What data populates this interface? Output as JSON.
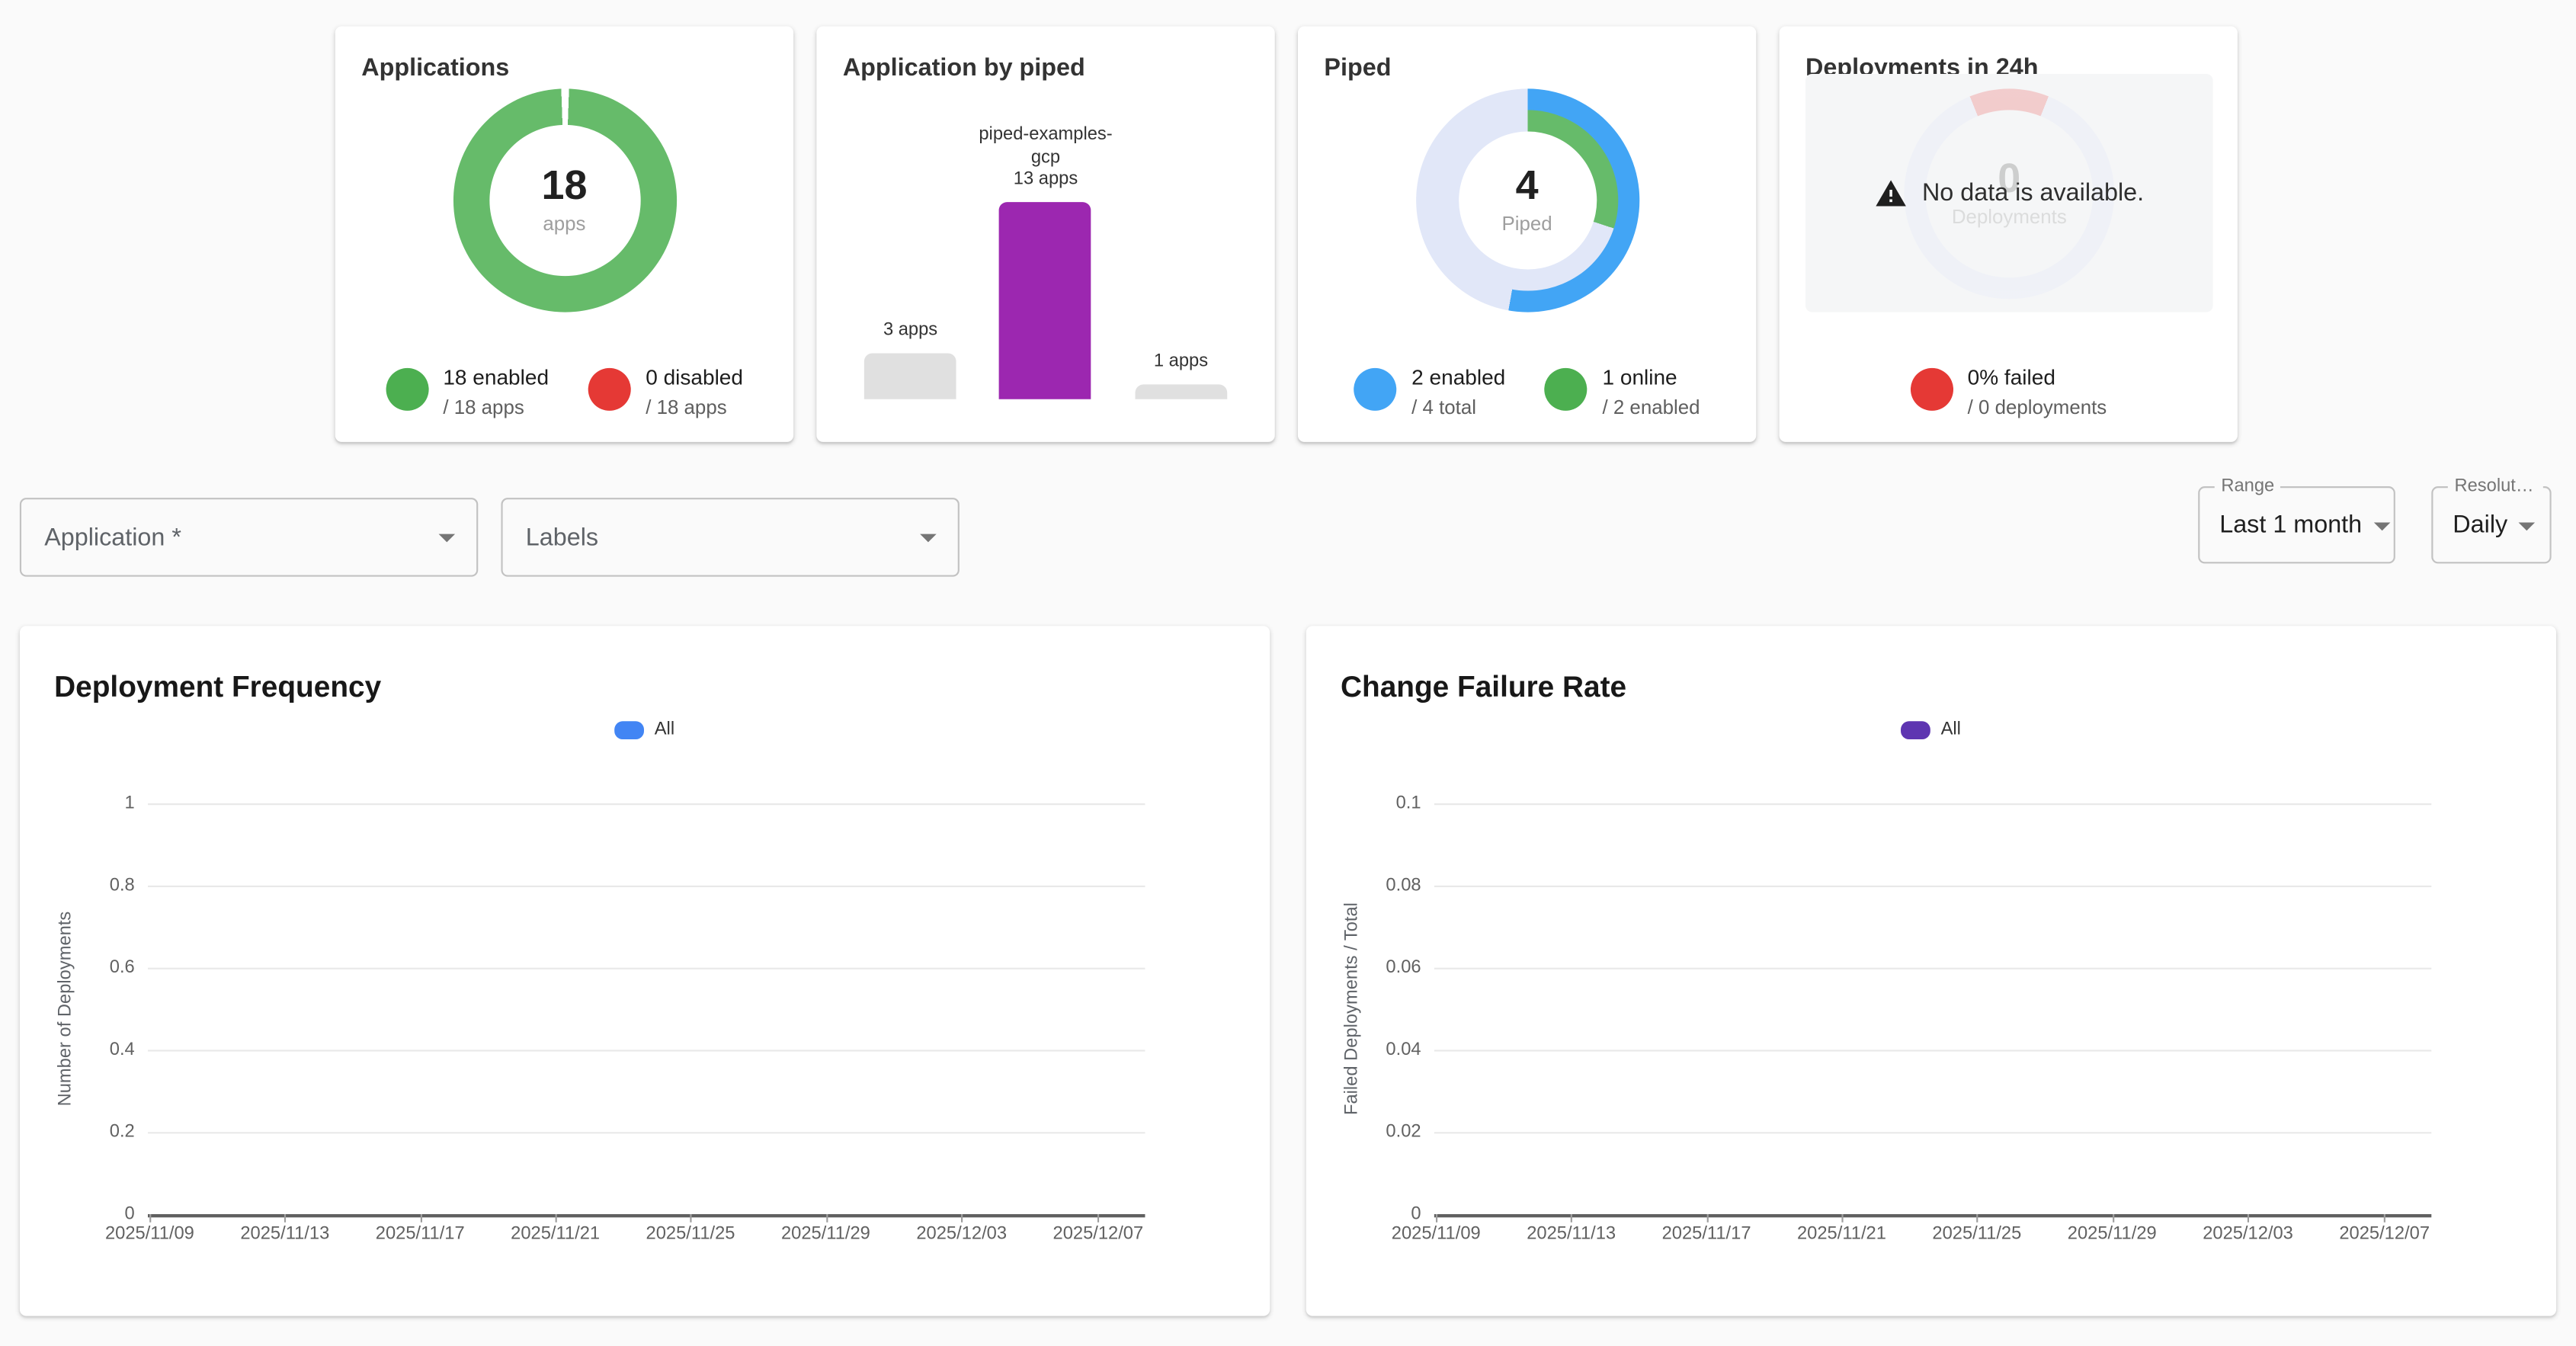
{
  "page": {
    "background": "#fafafa"
  },
  "cards": {
    "applications": {
      "title": "Applications",
      "center_value": "18",
      "center_label": "apps",
      "ring": {
        "track": "#ffffff",
        "color": "#66bb6a",
        "start_deg": 2,
        "sweep_deg": 356
      },
      "legend": [
        {
          "color": "#4caf50",
          "label": "18 enabled",
          "sublabel": "/ 18 apps"
        },
        {
          "color": "#e53935",
          "label": "0 disabled",
          "sublabel": "/ 18 apps"
        }
      ]
    },
    "application_by_piped": {
      "title": "Application by piped",
      "bars": [
        {
          "label": "3 apps",
          "value": 3,
          "color": "#e0e0e0"
        },
        {
          "label": "piped-examples-gcp",
          "label2": "13 apps",
          "value": 13,
          "color": "#9c27b0"
        },
        {
          "label": "1 apps",
          "value": 1,
          "color": "#e0e0e0"
        }
      ]
    },
    "piped": {
      "title": "Piped",
      "center_value": "4",
      "center_label": "Piped",
      "rings": [
        {
          "track": "#e1e7f8",
          "color": "#42a5f5",
          "start_deg": 0,
          "sweep_deg": 190
        },
        {
          "track": "#e1e7f8",
          "color": "#66bb6a",
          "start_deg": 0,
          "sweep_deg": 108
        }
      ],
      "legend": [
        {
          "color": "#42a5f5",
          "label": "2 enabled",
          "sublabel": "/ 4 total"
        },
        {
          "color": "#4caf50",
          "label": "1 online",
          "sublabel": "/ 2 enabled"
        }
      ]
    },
    "deployments_24h": {
      "title": "Deployments in 24h",
      "no_data_message": "No data is available.",
      "center_value": "0",
      "center_label": "Deployments",
      "ring": {
        "track": "#e9edf8",
        "color": "#ef9a9a",
        "start_deg": -22,
        "sweep_deg": 44
      },
      "legend": [
        {
          "color": "#e53935",
          "label": "0% failed",
          "sublabel": "/ 0 deployments"
        }
      ]
    }
  },
  "filters": {
    "application": {
      "label": "Application *"
    },
    "labels": {
      "label": "Labels"
    },
    "range": {
      "label": "Range",
      "value": "Last 1 month"
    },
    "resolution": {
      "label": "Resolution",
      "value": "Daily"
    }
  },
  "chart_data": [
    {
      "type": "line",
      "title": "Deployment Frequency",
      "ylabel": "Number of Deployments",
      "ylim": [
        0,
        1
      ],
      "yticks": [
        "1",
        "0.8",
        "0.6",
        "0.4",
        "0.2",
        "0"
      ],
      "xticks": [
        "2025/11/09",
        "2025/11/13",
        "2025/11/17",
        "2025/11/21",
        "2025/11/25",
        "2025/11/29",
        "2025/12/03",
        "2025/12/07"
      ],
      "legend": [
        {
          "name": "All",
          "color": "#4285f4"
        }
      ],
      "series": [
        {
          "name": "All",
          "values": []
        }
      ],
      "grid": "horizontal only",
      "note": "no data plotted"
    },
    {
      "type": "line",
      "title": "Change Failure Rate",
      "ylabel": "Failed Deployments / Total",
      "ylim": [
        0,
        0.1
      ],
      "yticks": [
        "0.1",
        "0.08",
        "0.06",
        "0.04",
        "0.02",
        "0"
      ],
      "xticks": [
        "2025/11/09",
        "2025/11/13",
        "2025/11/17",
        "2025/11/21",
        "2025/11/25",
        "2025/11/29",
        "2025/12/03",
        "2025/12/07"
      ],
      "legend": [
        {
          "name": "All",
          "color": "#5e35b1"
        }
      ],
      "series": [
        {
          "name": "All",
          "values": []
        }
      ],
      "grid": "horizontal only",
      "note": "no data plotted"
    }
  ]
}
